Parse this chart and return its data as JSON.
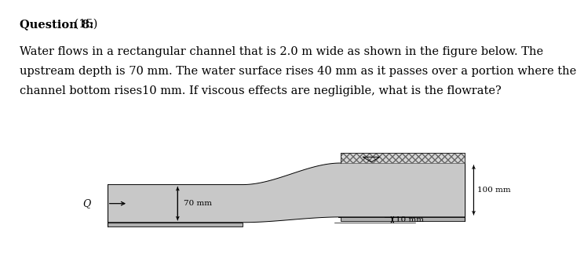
{
  "title_bold": "Question 8:",
  "title_normal": " (15)",
  "body_text": [
    "Water flows in a rectangular channel that is 2.0 m wide as shown in the figure below. The",
    "upstream depth is 70 mm. The water surface rises 40 mm as it passes over a portion where the",
    "channel bottom rises10 mm. If viscous effects are negligible, what is the flowrate?"
  ],
  "bg_color": "#ffffff",
  "channel_color": "#c8c8c8",
  "ground_color": "#b0b0b0",
  "hatch_color": "#666666",
  "label_70mm": "70 mm",
  "label_100mm": "100 mm",
  "label_10mm": "10 mm",
  "label_Q": "Q",
  "title_fontsize": 10.5,
  "body_fontsize": 10.5,
  "annotation_fontsize": 7.5
}
